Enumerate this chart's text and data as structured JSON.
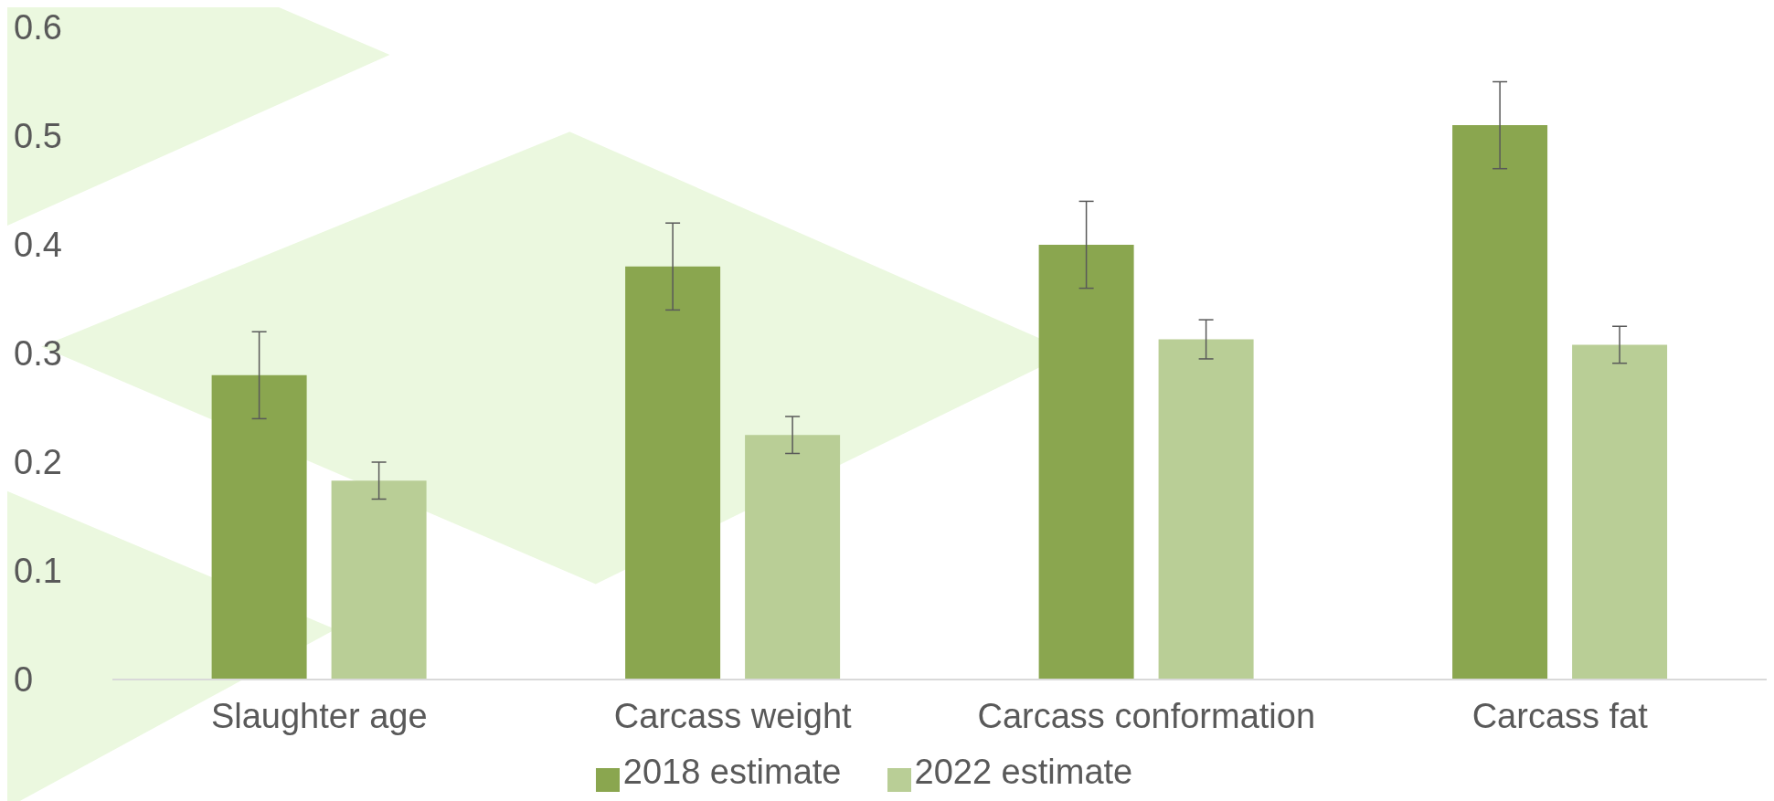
{
  "chart_data": {
    "type": "bar",
    "categories": [
      "Slaughter age",
      "Carcass weight",
      "Carcass conformation",
      "Carcass fat"
    ],
    "series": [
      {
        "name": "2018 estimate",
        "color": "#8aa64f",
        "values": [
          0.28,
          0.38,
          0.4,
          0.51
        ],
        "errors": [
          0.04,
          0.04,
          0.04,
          0.04
        ]
      },
      {
        "name": "2022 estimate",
        "color": "#b9ce96",
        "values": [
          0.183,
          0.225,
          0.313,
          0.308
        ],
        "errors": [
          0.017,
          0.017,
          0.018,
          0.017
        ]
      }
    ],
    "ylim": [
      0,
      0.6
    ],
    "yticks": [
      0,
      0.1,
      0.2,
      0.3,
      0.4,
      0.5,
      0.6
    ],
    "grid": false,
    "legend": "bottom"
  }
}
